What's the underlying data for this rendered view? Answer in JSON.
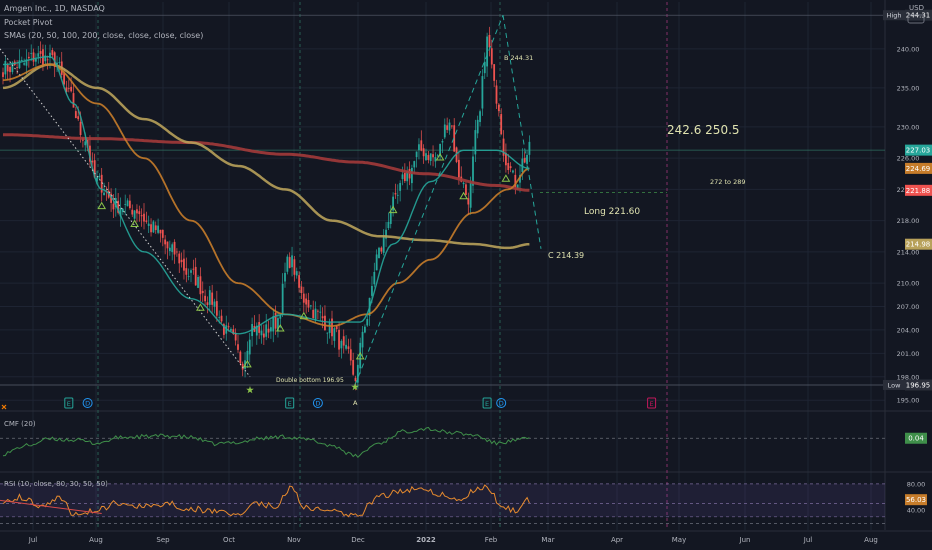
{
  "header": {
    "symbol_line": "Amgen Inc., 1D, NASDAQ",
    "indicator_1": "Pocket Pivot",
    "indicator_2": "SMAs (20, 50, 100, 200, close, close, close, close)",
    "currency": "USD"
  },
  "colors": {
    "background": "#131722",
    "grid": "#1e2433",
    "text": "#b2b5be",
    "candle_up": "#26a69a",
    "candle_down": "#ef5350",
    "sma20": "#26a69a",
    "sma50": "#c67c2a",
    "sma100": "#b8a15a",
    "sma200": "#a33a3a",
    "cmf": "#3f8f4a",
    "rsi": "#e68a2e",
    "annotation": "#e0e3b0"
  },
  "chart_data": [
    {
      "type": "candlestick",
      "name": "price",
      "ylim": [
        194,
        246
      ],
      "x_months": [
        "Jul",
        "Aug",
        "Sep",
        "Oct",
        "Nov",
        "Dec",
        "2022",
        "Feb",
        "Mar",
        "Apr",
        "May",
        "Jun",
        "Jul",
        "Aug"
      ],
      "y_ticks": [
        195.0,
        198.0,
        201.0,
        204.0,
        207.0,
        210.0,
        214.0,
        218.0,
        222.0,
        226.0,
        230.0,
        235.0,
        240.0
      ],
      "close_anchors": [
        [
          0,
          237.5
        ],
        [
          8,
          238
        ],
        [
          14,
          239
        ],
        [
          22,
          238.5
        ],
        [
          28,
          234
        ],
        [
          34,
          229
        ],
        [
          40,
          223
        ],
        [
          48,
          220
        ],
        [
          56,
          219.5
        ],
        [
          64,
          217
        ],
        [
          72,
          214
        ],
        [
          80,
          211
        ],
        [
          88,
          208
        ],
        [
          96,
          203.5
        ],
        [
          102,
          200
        ],
        [
          106,
          204.5
        ],
        [
          110,
          203.5
        ],
        [
          116,
          205
        ],
        [
          122,
          213
        ],
        [
          128,
          208
        ],
        [
          134,
          206
        ],
        [
          140,
          204
        ],
        [
          146,
          201
        ],
        [
          150,
          198
        ],
        [
          154,
          205
        ],
        [
          160,
          214
        ],
        [
          166,
          220
        ],
        [
          172,
          224
        ],
        [
          178,
          227
        ],
        [
          184,
          226
        ],
        [
          190,
          231
        ],
        [
          194,
          224
        ],
        [
          198,
          221
        ],
        [
          202,
          230
        ],
        [
          206,
          241
        ],
        [
          210,
          234
        ],
        [
          214,
          226
        ],
        [
          218,
          223
        ],
        [
          222,
          226
        ],
        [
          224,
          227
        ]
      ],
      "sma_anchors": {
        "sma20": [
          [
            0,
            238
          ],
          [
            20,
            239
          ],
          [
            30,
            233
          ],
          [
            42,
            222
          ],
          [
            60,
            214
          ],
          [
            80,
            208
          ],
          [
            100,
            203.5
          ],
          [
            120,
            206
          ],
          [
            140,
            205
          ],
          [
            152,
            205
          ],
          [
            166,
            215
          ],
          [
            182,
            223
          ],
          [
            196,
            227
          ],
          [
            210,
            227
          ],
          [
            224,
            224.69
          ]
        ],
        "sma50": [
          [
            0,
            236
          ],
          [
            20,
            238
          ],
          [
            40,
            233
          ],
          [
            60,
            226
          ],
          [
            80,
            218
          ],
          [
            100,
            210
          ],
          [
            120,
            206
          ],
          [
            140,
            204.5
          ],
          [
            155,
            206
          ],
          [
            168,
            210
          ],
          [
            182,
            213
          ],
          [
            200,
            219
          ],
          [
            215,
            222
          ],
          [
            224,
            224.69
          ]
        ],
        "sma100": [
          [
            0,
            235
          ],
          [
            20,
            238
          ],
          [
            40,
            235
          ],
          [
            60,
            231
          ],
          [
            80,
            228
          ],
          [
            100,
            225
          ],
          [
            120,
            222
          ],
          [
            140,
            218
          ],
          [
            160,
            216
          ],
          [
            180,
            215.5
          ],
          [
            200,
            215
          ],
          [
            215,
            214.5
          ],
          [
            224,
            214.98
          ]
        ],
        "sma200": [
          [
            0,
            229
          ],
          [
            40,
            228.5
          ],
          [
            80,
            228
          ],
          [
            120,
            226.5
          ],
          [
            150,
            225.5
          ],
          [
            180,
            224
          ],
          [
            210,
            222.5
          ],
          [
            224,
            221.88
          ]
        ]
      },
      "price_labels": [
        {
          "text": "High",
          "value": "244.31",
          "y": 244.31,
          "color": "#2a2e39"
        },
        {
          "text": "",
          "value": "227.03",
          "y": 227.03,
          "color": "#26a69a"
        },
        {
          "text": "",
          "value": "224.69",
          "y": 224.69,
          "color": "#c67c2a"
        },
        {
          "text": "",
          "value": "221.88",
          "y": 221.88,
          "color": "#ef5350"
        },
        {
          "text": "",
          "value": "214.98",
          "y": 214.98,
          "color": "#b8a15a"
        },
        {
          "text": "Low",
          "value": "196.95",
          "y": 196.95,
          "color": "#2a2e39"
        }
      ],
      "annotations": {
        "target_text": "242.6  250.5",
        "range_text": "272 to 289",
        "long_text": "Long 221.60",
        "long_value": 221.6,
        "point_b": "B 244.31",
        "point_c": "C 214.39",
        "point_a": "A",
        "double_bottom": "Double bottom 196.95",
        "wave_a_price": 196.95,
        "wave_b_price": 244.31,
        "wave_c_price": 214.39
      },
      "event_markers": [
        {
          "label": "E",
          "bar": 28,
          "kind": "earnings"
        },
        {
          "label": "D",
          "bar": 36,
          "kind": "dividend"
        },
        {
          "label": "E",
          "bar": 122,
          "kind": "earnings"
        },
        {
          "label": "D",
          "bar": 134,
          "kind": "dividend"
        },
        {
          "label": "E",
          "bar": 206,
          "kind": "earnings"
        },
        {
          "label": "D",
          "bar": 212,
          "kind": "dividend"
        },
        {
          "label": "E",
          "bar": 276,
          "kind": "future-earnings"
        }
      ]
    },
    {
      "type": "line",
      "name": "cmf",
      "title": "CMF (20)",
      "last_value": "0.04",
      "ylim": [
        -0.35,
        0.35
      ],
      "anchors": [
        [
          0,
          -0.15
        ],
        [
          10,
          -0.05
        ],
        [
          20,
          0.03
        ],
        [
          30,
          0.02
        ],
        [
          40,
          -0.02
        ],
        [
          50,
          0.05
        ],
        [
          60,
          0.06
        ],
        [
          70,
          0.07
        ],
        [
          80,
          0.05
        ],
        [
          90,
          -0.03
        ],
        [
          100,
          -0.01
        ],
        [
          110,
          0.04
        ],
        [
          120,
          0.06
        ],
        [
          130,
          0.02
        ],
        [
          140,
          -0.05
        ],
        [
          150,
          -0.18
        ],
        [
          160,
          -0.02
        ],
        [
          170,
          0.12
        ],
        [
          180,
          0.16
        ],
        [
          190,
          0.11
        ],
        [
          200,
          0.08
        ],
        [
          210,
          -0.02
        ],
        [
          218,
          0.01
        ],
        [
          224,
          0.04
        ]
      ]
    },
    {
      "type": "line",
      "name": "rsi",
      "title": "RSI (10, close, 80, 30, 50, 50)",
      "last_value": "56.03",
      "ylim": [
        10,
        95
      ],
      "levels": [
        80,
        50,
        30
      ],
      "level_labels": [
        "80.00",
        "40.00"
      ],
      "anchors": [
        [
          0,
          55
        ],
        [
          8,
          60
        ],
        [
          16,
          48
        ],
        [
          24,
          60
        ],
        [
          30,
          35
        ],
        [
          40,
          40
        ],
        [
          50,
          52
        ],
        [
          60,
          45
        ],
        [
          70,
          50
        ],
        [
          80,
          42
        ],
        [
          90,
          38
        ],
        [
          100,
          35
        ],
        [
          108,
          52
        ],
        [
          116,
          45
        ],
        [
          122,
          72
        ],
        [
          130,
          42
        ],
        [
          140,
          40
        ],
        [
          150,
          30
        ],
        [
          160,
          60
        ],
        [
          170,
          70
        ],
        [
          178,
          75
        ],
        [
          186,
          65
        ],
        [
          194,
          55
        ],
        [
          200,
          70
        ],
        [
          206,
          75
        ],
        [
          212,
          48
        ],
        [
          218,
          40
        ],
        [
          224,
          56
        ]
      ]
    }
  ]
}
